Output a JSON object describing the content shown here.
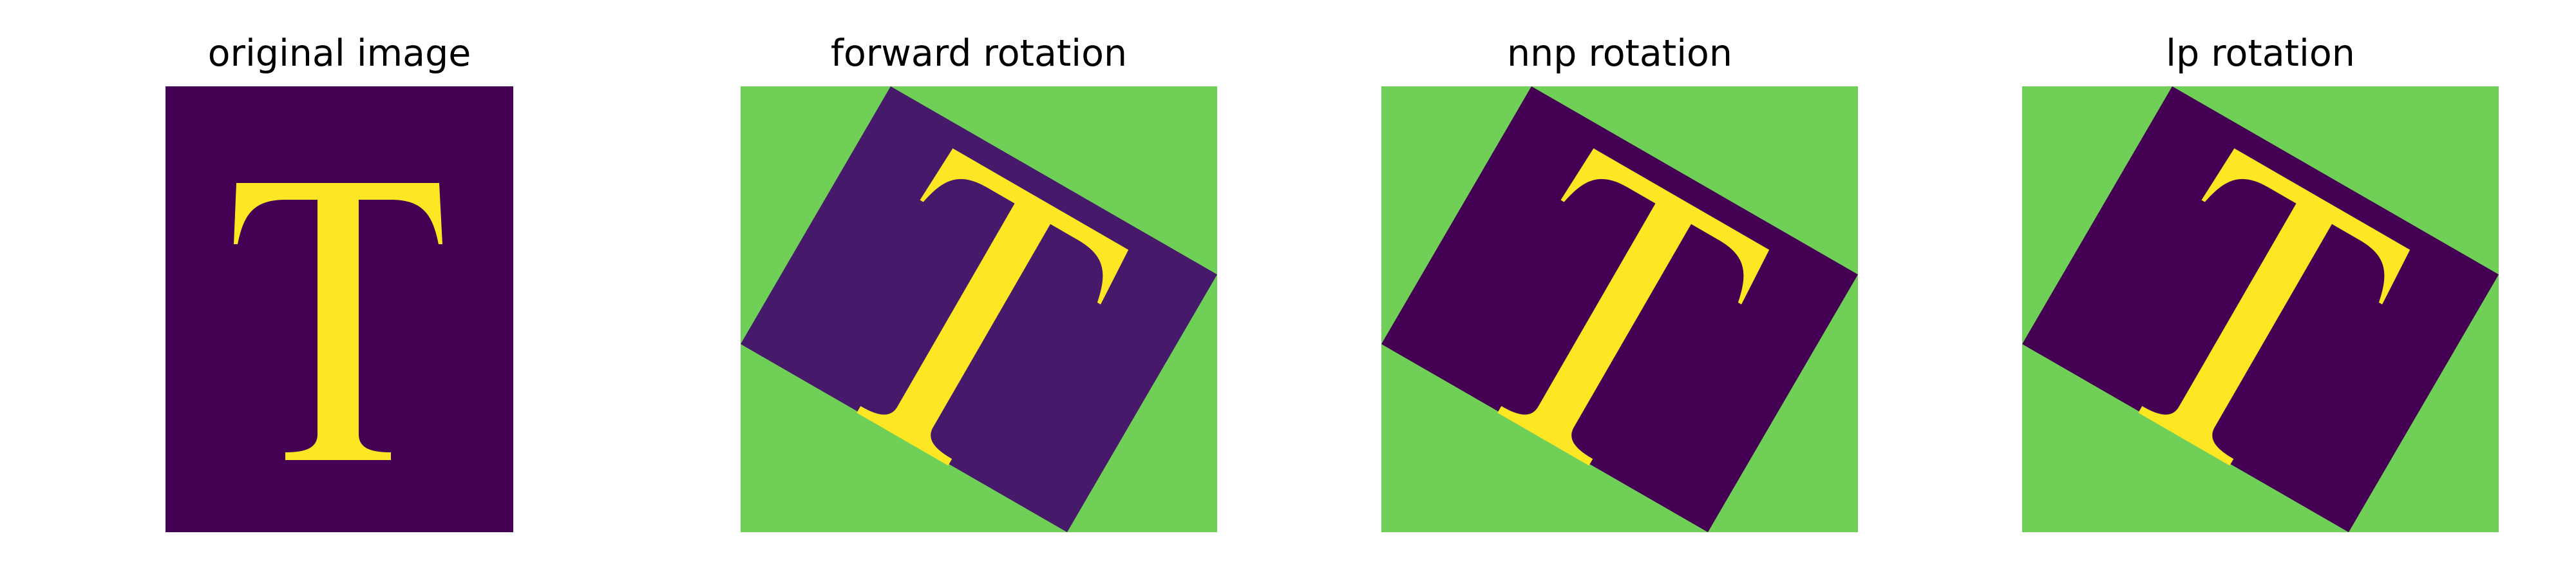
{
  "panels": [
    {
      "title": "original image"
    },
    {
      "title": "forward rotation"
    },
    {
      "title": "nnp rotation"
    },
    {
      "title": "lp rotation"
    }
  ],
  "colors": {
    "background": "#440154",
    "forward_background": "#46196b",
    "letter": "#fde725",
    "fill": "#6fcf57"
  },
  "rotation_degrees": 30
}
